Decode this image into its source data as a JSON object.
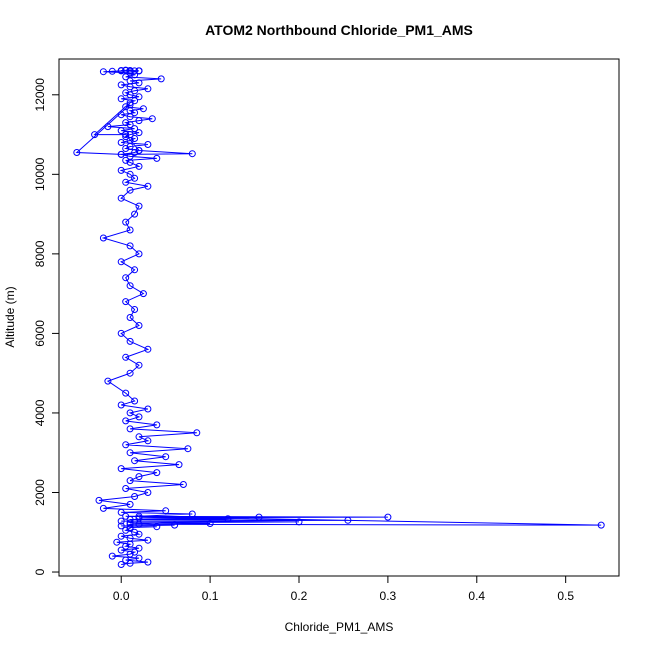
{
  "chart_data": {
    "type": "scatter",
    "title": "ATOM2 Northbound Chloride_PM1_AMS",
    "xlabel": "Chloride_PM1_AMS",
    "ylabel": "Altitude (m)",
    "xlim": [
      -0.07,
      0.56
    ],
    "ylim": [
      -100,
      12900
    ],
    "xticks": [
      0.0,
      0.1,
      0.2,
      0.3,
      0.4,
      0.5
    ],
    "xtick_labels": [
      "0.0",
      "0.1",
      "0.2",
      "0.3",
      "0.4",
      "0.5"
    ],
    "yticks": [
      0,
      2000,
      4000,
      6000,
      8000,
      10000,
      12000
    ],
    "ytick_labels": [
      "0",
      "2000",
      "4000",
      "6000",
      "8000",
      "10000",
      "12000"
    ],
    "grid": false,
    "legend": "none",
    "marker": "open-circle",
    "connected": true,
    "color": "#0000ff",
    "series": [
      {
        "x": [
          0.0,
          0.01,
          0.03,
          0.005,
          0.02,
          -0.01,
          0.01,
          0.015,
          0.0,
          0.02,
          0.005,
          0.01,
          -0.005,
          0.03,
          0.01,
          0.0,
          0.02,
          0.015,
          0.005,
          0.01,
          0.01,
          0.04,
          0.0,
          0.06,
          0.02,
          0.1,
          0.01,
          0.2,
          0.0,
          0.255,
          0.01,
          0.12,
          0.02,
          0.3,
          0.005,
          0.54,
          0.01,
          0.155,
          0.02,
          0.08,
          0.0,
          0.05,
          -0.02,
          0.01,
          -0.025,
          0.015,
          0.03,
          0.005,
          0.07,
          0.01,
          0.02,
          0.04,
          0.0,
          0.065,
          0.015,
          0.05,
          0.01,
          0.075,
          0.005,
          0.03,
          0.02,
          0.085,
          0.01,
          0.04,
          0.005,
          0.02,
          0.01,
          0.03,
          0.0,
          0.015,
          0.005,
          -0.015,
          0.01,
          0.02,
          0.005,
          0.03,
          0.01,
          0.0,
          0.02,
          0.01,
          0.015,
          0.005,
          0.025,
          0.01,
          0.005,
          0.015,
          0.0,
          0.02,
          0.01,
          -0.02,
          0.01,
          0.005,
          0.015,
          0.02,
          0.0,
          0.01,
          0.03,
          0.005,
          0.015,
          0.01,
          0.0,
          0.02,
          0.01,
          0.005,
          0.04,
          0.01,
          0.0,
          0.015,
          0.02,
          0.005,
          0.01,
          0.03,
          0.0,
          0.01,
          0.015,
          0.005,
          0.01,
          0.02,
          0.0,
          0.015,
          -0.015,
          0.01,
          0.005,
          0.02,
          0.035,
          0.01,
          0.0,
          0.015,
          0.01,
          0.025,
          0.005,
          0.01,
          -0.05,
          0.0,
          0.08,
          0.02,
          0.005,
          -0.03,
          0.01,
          0.015,
          0.0,
          0.02,
          0.01,
          0.005,
          0.015,
          0.03,
          0.01,
          0.0,
          0.02,
          0.01,
          0.045,
          0.005,
          0.015,
          0.01,
          -0.02,
          0.0,
          0.01,
          0.005,
          0.02,
          0.01,
          0.015,
          0.0,
          0.01,
          -0.01,
          0.02,
          0.005,
          0.02
        ],
        "y": [
          190,
          220,
          250,
          300,
          350,
          400,
          450,
          500,
          550,
          600,
          650,
          700,
          750,
          800,
          850,
          900,
          950,
          1000,
          1050,
          1100,
          1120,
          1140,
          1160,
          1180,
          1200,
          1220,
          1240,
          1260,
          1280,
          1300,
          1320,
          1340,
          1360,
          1380,
          1400,
          1180,
          1200,
          1380,
          1400,
          1460,
          1500,
          1540,
          1600,
          1700,
          1800,
          1900,
          2000,
          2100,
          2200,
          2300,
          2400,
          2500,
          2600,
          2700,
          2800,
          2900,
          3000,
          3100,
          3200,
          3300,
          3400,
          3500,
          3600,
          3700,
          3800,
          3900,
          4000,
          4100,
          4200,
          4300,
          4500,
          4800,
          5000,
          5200,
          5400,
          5600,
          5800,
          6000,
          6200,
          6400,
          6600,
          6800,
          7000,
          7200,
          7400,
          7600,
          7800,
          8000,
          8200,
          8400,
          8600,
          8800,
          9000,
          9200,
          9400,
          9600,
          9700,
          9800,
          9900,
          10000,
          10100,
          10200,
          10300,
          10350,
          10400,
          10450,
          10500,
          10550,
          10600,
          10650,
          10700,
          10750,
          10800,
          10850,
          10900,
          10950,
          11000,
          11050,
          11100,
          11150,
          11200,
          11250,
          11300,
          11350,
          11400,
          11450,
          11500,
          11550,
          11600,
          11650,
          11700,
          11750,
          10550,
          10500,
          10520,
          10600,
          11000,
          11000,
          11800,
          11850,
          11900,
          11950,
          12000,
          12050,
          12100,
          12150,
          12200,
          12250,
          12300,
          12350,
          12400,
          12450,
          12500,
          12550,
          12580,
          12600,
          12610,
          12620,
          12600,
          12590,
          12600,
          12610,
          12600,
          12590,
          12600,
          12610,
          12600
        ]
      }
    ]
  }
}
